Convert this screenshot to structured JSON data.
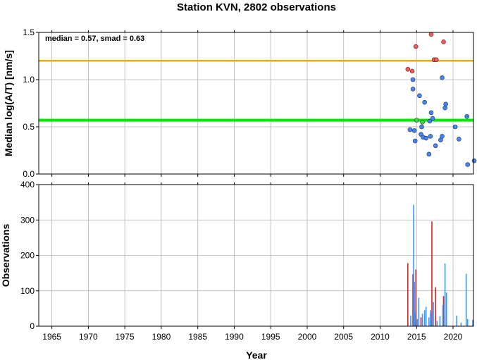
{
  "chart_data": {
    "title": "Station KVN, 2802 observations",
    "xlabel": "Year",
    "x_ticks": [
      1965,
      1970,
      1975,
      1980,
      1985,
      1990,
      1995,
      2000,
      2005,
      2010,
      2015,
      2020
    ],
    "xlim": [
      1963.2,
      2022.8
    ],
    "grid": true,
    "panels": [
      {
        "type": "scatter",
        "ylabel": "Median log(A/T) [nm/s]",
        "ylim": [
          0,
          1.5
        ],
        "y_ticks": [
          "0.0",
          "0.5",
          "1.0",
          "1.5"
        ],
        "annotation": "median = 0.57, smad = 0.63",
        "reference_lines": [
          {
            "y": 1.2,
            "color": "#ffa500"
          },
          {
            "y": 0.57,
            "color": "#00ee00"
          }
        ],
        "series": [
          {
            "color": "#ff5555",
            "points": [
              [
                2013.8,
                1.11
              ],
              [
                2014.4,
                1.09
              ],
              [
                2014.9,
                1.35
              ],
              [
                2017.0,
                1.48
              ],
              [
                2017.4,
                1.21
              ],
              [
                2017.7,
                1.21
              ],
              [
                2018.7,
                1.4
              ]
            ]
          },
          {
            "color": "#3d85ff",
            "points": [
              [
                2014.1,
                0.47
              ],
              [
                2014.5,
                0.9
              ],
              [
                2014.5,
                1.0
              ],
              [
                2014.7,
                0.46
              ],
              [
                2014.8,
                0.35
              ],
              [
                2015.4,
                0.83
              ],
              [
                2015.6,
                0.42
              ],
              [
                2015.7,
                0.5
              ],
              [
                2015.9,
                0.39
              ],
              [
                2016.1,
                0.76
              ],
              [
                2016.3,
                0.38
              ],
              [
                2016.7,
                0.21
              ],
              [
                2016.8,
                0.56
              ],
              [
                2016.9,
                0.4
              ],
              [
                2017.0,
                0.65
              ],
              [
                2017.2,
                0.59
              ],
              [
                2017.6,
                0.3
              ],
              [
                2018.3,
                0.36
              ],
              [
                2018.5,
                0.4
              ],
              [
                2018.5,
                1.02
              ],
              [
                2018.9,
                0.7
              ],
              [
                2019.0,
                0.74
              ],
              [
                2020.3,
                0.5
              ],
              [
                2020.8,
                0.37
              ],
              [
                2021.9,
                0.61
              ],
              [
                2022.0,
                0.1
              ],
              [
                2022.9,
                0.14
              ]
            ]
          },
          {
            "color": "#33dd33",
            "points": [
              [
                2015.0,
                0.57
              ],
              [
                2015.8,
                0.55
              ]
            ]
          }
        ]
      },
      {
        "type": "bar",
        "ylabel": "Observations",
        "ylim": [
          0,
          400
        ],
        "y_ticks": [
          "0",
          "100",
          "200",
          "300",
          "400"
        ],
        "series": [
          {
            "color": "#dd2222",
            "bars": [
              [
                2013.8,
                178
              ],
              [
                2014.5,
                147
              ],
              [
                2014.9,
                160
              ],
              [
                2015.6,
                25
              ],
              [
                2017.1,
                296
              ],
              [
                2017.6,
                110
              ],
              [
                2018.7,
                85
              ]
            ]
          },
          {
            "color": "#3399ff",
            "bars": [
              [
                2014.2,
                30
              ],
              [
                2014.6,
                343
              ],
              [
                2014.7,
                125
              ],
              [
                2014.8,
                36
              ],
              [
                2015.1,
                20
              ],
              [
                2015.3,
                80
              ],
              [
                2015.8,
                35
              ],
              [
                2016.1,
                45
              ],
              [
                2016.3,
                55
              ],
              [
                2016.7,
                25
              ],
              [
                2016.9,
                45
              ],
              [
                2017.0,
                35
              ],
              [
                2017.3,
                68
              ],
              [
                2017.8,
                15
              ],
              [
                2018.2,
                28
              ],
              [
                2018.6,
                60
              ],
              [
                2018.9,
                177
              ],
              [
                2019.1,
                95
              ],
              [
                2020.5,
                30
              ],
              [
                2021.1,
                10
              ],
              [
                2021.8,
                148
              ],
              [
                2022.0,
                20
              ],
              [
                2022.7,
                18
              ]
            ]
          }
        ]
      }
    ]
  }
}
